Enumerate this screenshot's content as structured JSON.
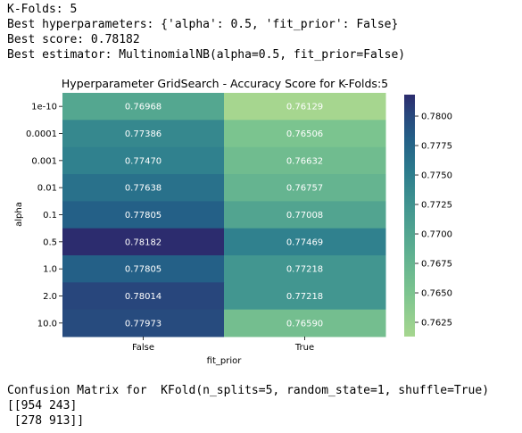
{
  "output_top": [
    "K-Folds: 5",
    "Best hyperparameters: {'alpha': 0.5, 'fit_prior': False}",
    "Best score: 0.78182",
    "Best estimator: MultinomialNB(alpha=0.5, fit_prior=False)"
  ],
  "output_bottom": [
    "Confusion Matrix for  KFold(n_splits=5, random_state=1, shuffle=True)",
    "[[954 243]",
    " [278 913]]"
  ],
  "chart_data": {
    "type": "heatmap",
    "title": "Hyperparameter GridSearch - Accuracy Score for K-Folds:5",
    "xlabel": "fit_prior",
    "ylabel": "alpha",
    "x_categories": [
      "False",
      "True"
    ],
    "y_categories": [
      "1e-10",
      "0.0001",
      "0.001",
      "0.01",
      "0.1",
      "0.5",
      "1.0",
      "2.0",
      "10.0"
    ],
    "values": [
      [
        0.76968,
        0.76129
      ],
      [
        0.77386,
        0.76506
      ],
      [
        0.7747,
        0.76632
      ],
      [
        0.77638,
        0.76757
      ],
      [
        0.77805,
        0.77008
      ],
      [
        0.78182,
        0.77469
      ],
      [
        0.77805,
        0.77218
      ],
      [
        0.78014,
        0.77218
      ],
      [
        0.77973,
        0.7659
      ]
    ],
    "value_labels": [
      [
        "0.76968",
        "0.76129"
      ],
      [
        "0.77386",
        "0.76506"
      ],
      [
        "0.77470",
        "0.76632"
      ],
      [
        "0.77638",
        "0.76757"
      ],
      [
        "0.77805",
        "0.77008"
      ],
      [
        "0.78182",
        "0.77469"
      ],
      [
        "0.77805",
        "0.77218"
      ],
      [
        "0.78014",
        "0.77218"
      ],
      [
        "0.77973",
        "0.76590"
      ]
    ],
    "colorbar": {
      "min": 0.76129,
      "max": 0.78182,
      "ticks": [
        0.7625,
        0.765,
        0.7675,
        0.77,
        0.7725,
        0.775,
        0.7775,
        0.78
      ],
      "tick_labels": [
        "0.7625",
        "0.7650",
        "0.7675",
        "0.7700",
        "0.7725",
        "0.7750",
        "0.7775",
        "0.7800"
      ],
      "colormap": "crest",
      "low_color": "#a6d68f",
      "high_color": "#2a2a6e"
    }
  }
}
